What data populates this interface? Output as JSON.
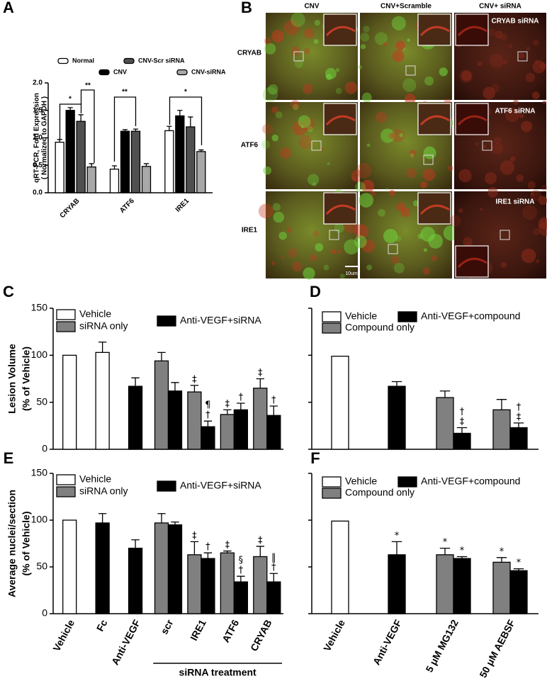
{
  "chart_data": [
    {
      "type": "bar",
      "panel": "A",
      "ylabel": [
        "qRT-PCR, Fold Expression",
        "( Normalized to GAPDH )"
      ],
      "categories": [
        "CRYAB",
        "ATF6",
        "IRE1"
      ],
      "series": [
        {
          "name": "Normal",
          "color": "#ffffff",
          "values": [
            0.92,
            0.43,
            1.13
          ],
          "errors": [
            0.05,
            0.06,
            0.08
          ]
        },
        {
          "name": "CNV",
          "color": "#000000",
          "values": [
            1.5,
            1.12,
            1.4
          ],
          "errors": [
            0.05,
            0.03,
            0.1
          ]
        },
        {
          "name": "CNV-Scr siRNA",
          "color": "#505050",
          "values": [
            1.3,
            1.12,
            1.2
          ],
          "errors": [
            0.12,
            0.04,
            0.18
          ]
        },
        {
          "name": "CNV-siRNA",
          "color": "#a8a8a8",
          "values": [
            0.47,
            0.48,
            0.75
          ],
          "errors": [
            0.06,
            0.05,
            0.03
          ]
        }
      ],
      "ylim": [
        0,
        2
      ],
      "yticks": [
        {
          "value": 0,
          "label": "0.0"
        },
        0.5,
        {
          "value": 1,
          "label": "1.0"
        },
        1.5,
        {
          "value": 2,
          "label": "2.0"
        }
      ],
      "annotations": [
        "*",
        "**",
        "**",
        "*"
      ]
    },
    {
      "type": "bar",
      "panel": "C",
      "ylabel": [
        "Lesion Volume",
        "(% of Vehicle)"
      ],
      "series": [
        {
          "name": "Vehicle",
          "color": "#ffffff",
          "values": [
            100,
            103,
            null,
            null,
            null,
            null,
            null
          ],
          "errors": [
            null,
            11,
            null,
            null,
            null,
            null,
            null
          ]
        },
        {
          "name": "siRNA only",
          "color": "#808080",
          "values": [
            null,
            null,
            null,
            94,
            61,
            37,
            65
          ],
          "errors": [
            null,
            null,
            null,
            9,
            7,
            5,
            10
          ],
          "symbols": [
            null,
            null,
            null,
            null,
            [
              "‡"
            ],
            [
              "‡"
            ],
            [
              "‡"
            ]
          ]
        },
        {
          "name": "Anti-VEGF+siRNA",
          "color": "#000000",
          "values": [
            null,
            null,
            67,
            62,
            24,
            42,
            36
          ],
          "errors": [
            null,
            null,
            9,
            9,
            6,
            7,
            10
          ],
          "symbols": [
            null,
            null,
            null,
            null,
            [
              "†",
              "¶"
            ],
            [
              "†"
            ],
            [
              "†"
            ]
          ]
        }
      ],
      "ylim": [
        0,
        150
      ],
      "yticks": [
        0,
        50,
        100,
        150
      ]
    },
    {
      "type": "bar",
      "panel": "D",
      "series": [
        {
          "name": "Vehicle",
          "color": "#ffffff",
          "values": [
            99,
            null,
            null,
            null
          ],
          "errors": [
            null,
            null,
            null,
            null
          ]
        },
        {
          "name": "Compound only",
          "color": "#808080",
          "values": [
            null,
            null,
            55,
            42
          ],
          "errors": [
            null,
            null,
            7,
            11
          ]
        },
        {
          "name": "Anti-VEGF+compound",
          "color": "#000000",
          "values": [
            null,
            67,
            17,
            23
          ],
          "errors": [
            null,
            5,
            6,
            5
          ],
          "symbols": [
            null,
            null,
            [
              "‡",
              "†"
            ],
            [
              "‡",
              "†"
            ]
          ]
        }
      ],
      "ylim": [
        0,
        150
      ],
      "yticks": [
        0,
        50,
        100,
        150
      ],
      "ytick_labels": false
    },
    {
      "type": "bar",
      "panel": "E",
      "ylabel": [
        "Average nuclei/section",
        "(% of Vehicle)"
      ],
      "categories": [
        "Vehicle",
        "Fc",
        "Anti-VEGF",
        "scr",
        "IRE1",
        "ATF6",
        "CRYAB"
      ],
      "group_label": "siRNA treatment",
      "series": [
        {
          "name": "Vehicle",
          "color": "#ffffff",
          "values": [
            100,
            null,
            null,
            null,
            null,
            null,
            null
          ],
          "errors": [
            null,
            null,
            null,
            null,
            null,
            null,
            null
          ]
        },
        {
          "name": "siRNA only",
          "color": "#808080",
          "values": [
            null,
            null,
            null,
            97,
            63,
            65,
            61
          ],
          "errors": [
            null,
            null,
            null,
            10,
            14,
            2,
            11
          ],
          "symbols": [
            null,
            null,
            null,
            null,
            [
              "‡"
            ],
            [
              "‡"
            ],
            [
              "‡"
            ]
          ]
        },
        {
          "name": "Anti-VEGF+siRNA",
          "color": "#000000",
          "values": [
            null,
            97,
            70,
            95,
            59,
            34,
            34
          ],
          "errors": [
            null,
            10,
            9,
            3,
            6,
            6,
            9
          ],
          "symbols": [
            null,
            null,
            null,
            null,
            [
              "†"
            ],
            [
              "†",
              "§"
            ],
            [
              "†",
              "‖"
            ]
          ]
        }
      ],
      "ylim": [
        0,
        150
      ],
      "yticks": [
        0,
        50,
        100,
        150
      ]
    },
    {
      "type": "bar",
      "panel": "F",
      "categories": [
        "Vehicle",
        "Anti-VEGF",
        "5 μM MG132",
        "50 μM AEBSF"
      ],
      "series": [
        {
          "name": "Vehicle",
          "color": "#ffffff",
          "values": [
            99,
            null,
            null,
            null
          ],
          "errors": [
            null,
            null,
            null,
            null
          ]
        },
        {
          "name": "Compound only",
          "color": "#808080",
          "values": [
            null,
            null,
            63,
            55
          ],
          "errors": [
            null,
            null,
            7,
            5
          ],
          "symbols": [
            null,
            null,
            [
              "*"
            ],
            [
              "*"
            ]
          ]
        },
        {
          "name": "Anti-VEGF+compound",
          "color": "#000000",
          "values": [
            null,
            63,
            59,
            46
          ],
          "errors": [
            null,
            14,
            2,
            2
          ],
          "symbols": [
            null,
            [
              "*"
            ],
            [
              "*"
            ],
            [
              "*"
            ]
          ]
        }
      ],
      "ylim": [
        0,
        150
      ],
      "yticks": [
        0,
        50,
        100,
        150
      ],
      "ytick_labels": false
    }
  ],
  "image_panel": {
    "panel": "B",
    "columns": [
      "CNV",
      "CNV+Scramble",
      "CNV+ siRNA"
    ],
    "rows": [
      "CRYAB",
      "ATF6",
      "IRE1"
    ],
    "inset_labels": [
      "CRYAB siRNA",
      "ATF6 siRNA",
      "IRE1 siRNA"
    ],
    "scale_bar": "10um"
  }
}
